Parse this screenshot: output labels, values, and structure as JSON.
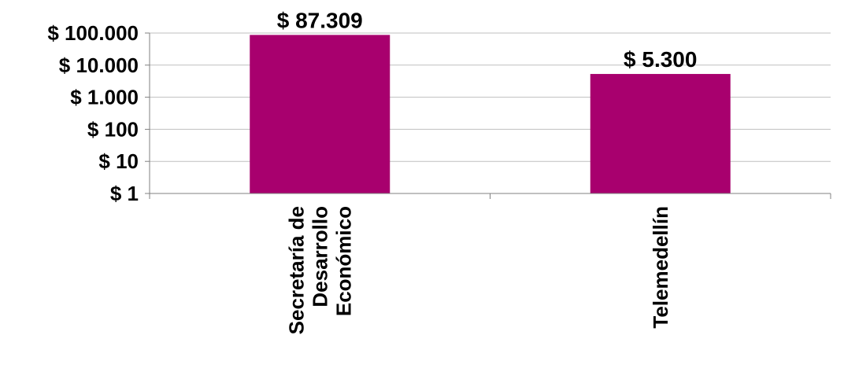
{
  "chart_data": {
    "type": "bar",
    "scale": "log",
    "categories": [
      [
        "Secretaría de",
        "Desarrollo",
        "Económico"
      ],
      [
        "Telemedellín"
      ]
    ],
    "values": [
      87309,
      5300
    ],
    "data_labels": [
      "$ 87.309",
      "$ 5.300"
    ],
    "y_ticks": [
      1,
      10,
      100,
      1000,
      10000,
      100000
    ],
    "y_tick_labels": [
      "$ 1",
      "$ 10",
      "$ 100",
      "$ 1.000",
      "$ 10.000",
      "$ 100.000"
    ],
    "ylim": [
      1,
      100000
    ],
    "grid": true,
    "bar_color": "#A8006E",
    "grid_color": "#BFBFBF",
    "axis_color": "#808080"
  }
}
